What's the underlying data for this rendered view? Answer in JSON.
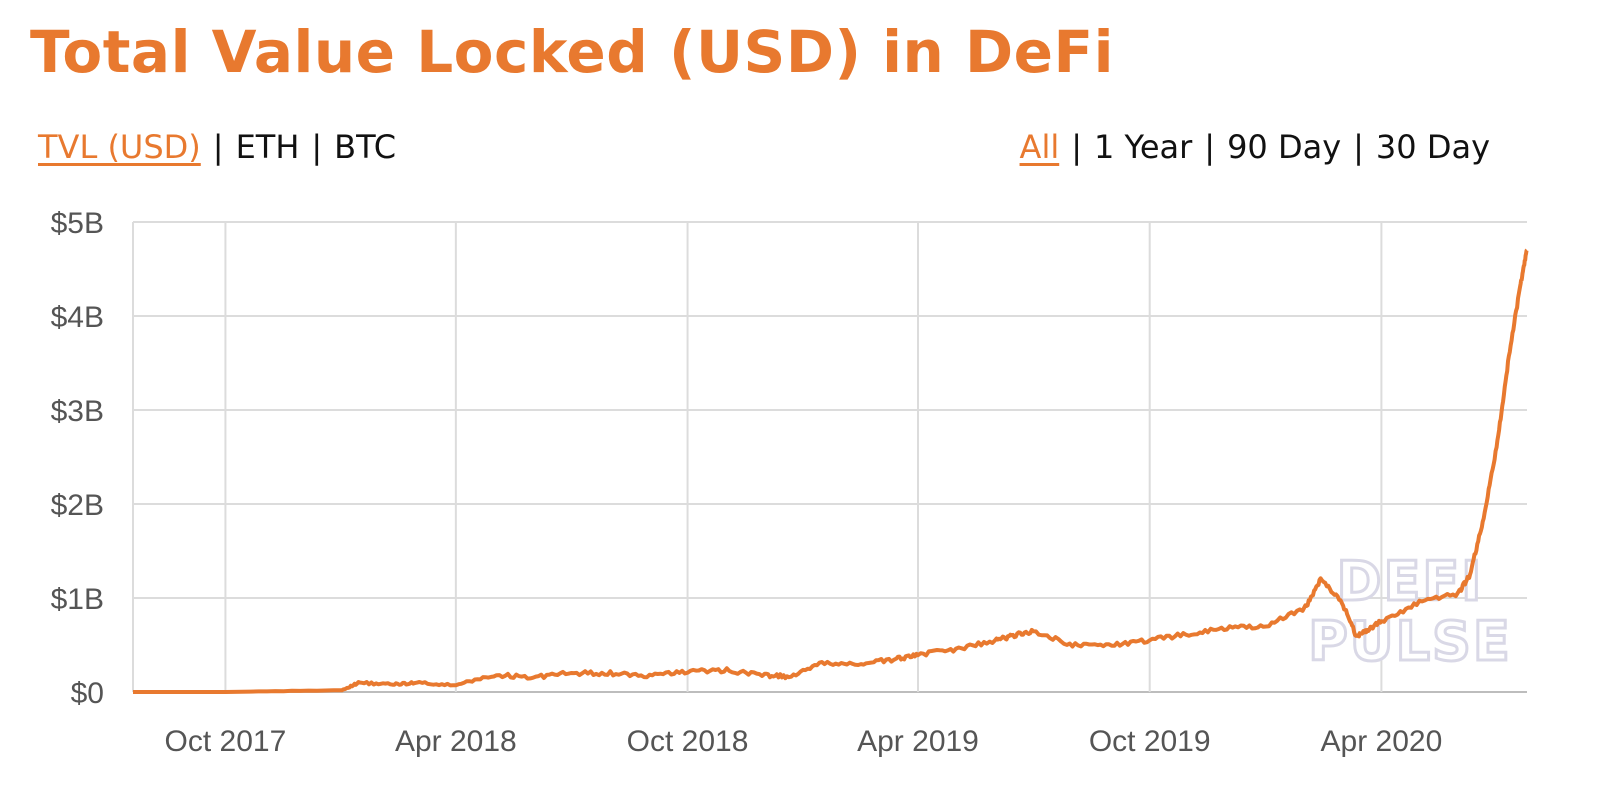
{
  "header": {
    "title": "Total Value Locked (USD) in DeFi"
  },
  "denomination_options": [
    {
      "label": "TVL (USD)",
      "active": true
    },
    {
      "label": "ETH",
      "active": false
    },
    {
      "label": "BTC",
      "active": false
    }
  ],
  "range_options": [
    {
      "label": "All",
      "active": true
    },
    {
      "label": "1 Year",
      "active": false
    },
    {
      "label": "90 Day",
      "active": false
    },
    {
      "label": "30 Day",
      "active": false
    }
  ],
  "watermark": {
    "line1": "DEFI",
    "line2": "PULSE"
  },
  "colors": {
    "accent": "#E8792F",
    "grid": "#dcdcdc",
    "axis_text": "#555555"
  },
  "chart_data": {
    "type": "line",
    "title": "Total Value Locked (USD) in DeFi",
    "xlabel": "",
    "ylabel": "",
    "x_tick_labels": [
      "Oct 2017",
      "Apr 2018",
      "Oct 2018",
      "Apr 2019",
      "Oct 2019",
      "Apr 2020"
    ],
    "y_tick_labels": [
      "$0",
      "$1B",
      "$2B",
      "$3B",
      "$4B",
      "$5B"
    ],
    "y_ticks": [
      0,
      1,
      2,
      3,
      4,
      5
    ],
    "y_unit": "billion USD",
    "ylim": [
      0,
      5
    ],
    "xlim": [
      "2017-07-20",
      "2020-07-25"
    ],
    "grid": true,
    "series": [
      {
        "x": [
          "2017-07-20",
          "2017-10-01",
          "2018-01-01",
          "2018-01-15",
          "2018-02-10",
          "2018-03-01",
          "2018-04-01",
          "2018-05-01",
          "2018-06-01",
          "2018-07-01",
          "2018-08-01",
          "2018-09-01",
          "2018-10-01",
          "2018-11-01",
          "2018-12-01",
          "2018-12-20",
          "2019-01-15",
          "2019-02-15",
          "2019-03-15",
          "2019-04-01",
          "2019-05-01",
          "2019-06-01",
          "2019-06-15",
          "2019-07-01",
          "2019-08-01",
          "2019-09-01",
          "2019-10-01",
          "2019-11-01",
          "2019-12-01",
          "2020-01-01",
          "2020-02-01",
          "2020-02-13",
          "2020-03-01",
          "2020-03-12",
          "2020-03-20",
          "2020-04-01",
          "2020-05-01",
          "2020-06-01",
          "2020-06-10",
          "2020-06-20",
          "2020-07-01",
          "2020-07-10",
          "2020-07-20",
          "2020-07-25"
        ],
        "values": [
          0.0,
          0.0,
          0.02,
          0.1,
          0.08,
          0.1,
          0.07,
          0.18,
          0.16,
          0.2,
          0.2,
          0.17,
          0.22,
          0.23,
          0.18,
          0.16,
          0.3,
          0.3,
          0.35,
          0.4,
          0.45,
          0.55,
          0.6,
          0.65,
          0.5,
          0.5,
          0.55,
          0.62,
          0.68,
          0.7,
          0.9,
          1.2,
          0.95,
          0.6,
          0.65,
          0.75,
          0.95,
          1.05,
          1.25,
          1.8,
          2.6,
          3.5,
          4.35,
          4.7
        ]
      }
    ]
  }
}
